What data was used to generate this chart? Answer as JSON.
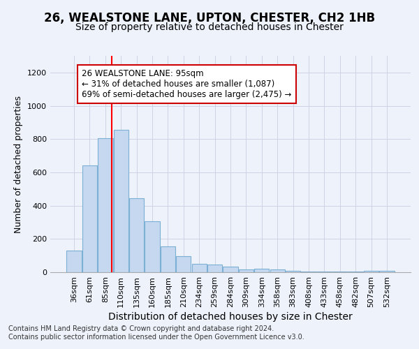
{
  "title": "26, WEALSTONE LANE, UPTON, CHESTER, CH2 1HB",
  "subtitle": "Size of property relative to detached houses in Chester",
  "xlabel": "Distribution of detached houses by size in Chester",
  "ylabel": "Number of detached properties",
  "categories": [
    "36sqm",
    "61sqm",
    "85sqm",
    "110sqm",
    "135sqm",
    "160sqm",
    "185sqm",
    "210sqm",
    "234sqm",
    "259sqm",
    "284sqm",
    "309sqm",
    "334sqm",
    "358sqm",
    "383sqm",
    "408sqm",
    "433sqm",
    "458sqm",
    "482sqm",
    "507sqm",
    "532sqm"
  ],
  "values": [
    130,
    640,
    805,
    855,
    445,
    305,
    155,
    95,
    52,
    45,
    35,
    15,
    20,
    15,
    8,
    5,
    5,
    5,
    3,
    8,
    8
  ],
  "bar_color": "#c5d8f0",
  "bar_edgecolor": "#7bafd4",
  "annotation_text": "26 WEALSTONE LANE: 95sqm\n← 31% of detached houses are smaller (1,087)\n69% of semi-detached houses are larger (2,475) →",
  "annotation_box_color": "#ffffff",
  "annotation_box_edgecolor": "#cc0000",
  "red_line_index": 2.425,
  "ylim": [
    0,
    1300
  ],
  "yticks": [
    0,
    200,
    400,
    600,
    800,
    1000,
    1200
  ],
  "title_fontsize": 12,
  "subtitle_fontsize": 10,
  "xlabel_fontsize": 10,
  "ylabel_fontsize": 9,
  "tick_fontsize": 8,
  "ann_fontsize": 8.5,
  "footer_text": "Contains HM Land Registry data © Crown copyright and database right 2024.\nContains public sector information licensed under the Open Government Licence v3.0.",
  "background_color": "#eef2fb",
  "grid_color": "#c8cfe0",
  "title_color": "#000000",
  "footer_fontsize": 7
}
